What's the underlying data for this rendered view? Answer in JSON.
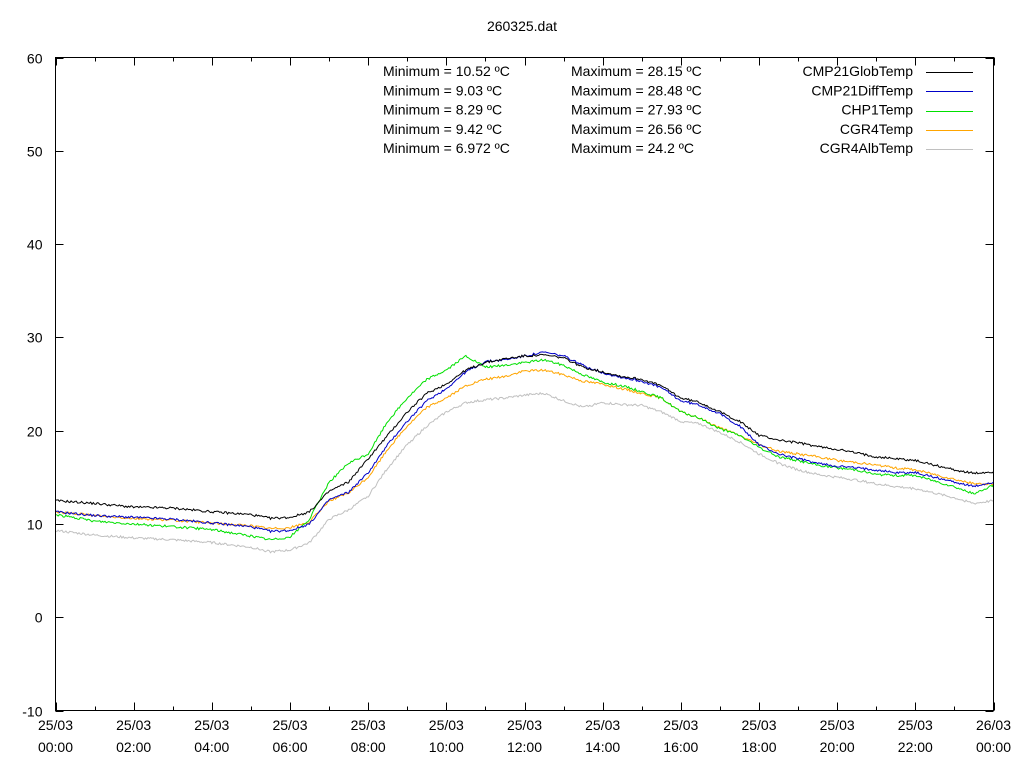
{
  "chart_data": {
    "type": "line",
    "title": "260325.dat",
    "xlabel": "",
    "ylabel": "",
    "ylim": [
      -10,
      60
    ],
    "xlim_hours": [
      0,
      24
    ],
    "y_ticks": [
      -10,
      0,
      10,
      20,
      30,
      40,
      50,
      60
    ],
    "x_ticks": [
      {
        "hour": 0,
        "date": "25/03",
        "time": "00:00"
      },
      {
        "hour": 2,
        "date": "25/03",
        "time": "02:00"
      },
      {
        "hour": 4,
        "date": "25/03",
        "time": "04:00"
      },
      {
        "hour": 6,
        "date": "25/03",
        "time": "06:00"
      },
      {
        "hour": 8,
        "date": "25/03",
        "time": "08:00"
      },
      {
        "hour": 10,
        "date": "25/03",
        "time": "10:00"
      },
      {
        "hour": 12,
        "date": "25/03",
        "time": "12:00"
      },
      {
        "hour": 14,
        "date": "25/03",
        "time": "14:00"
      },
      {
        "hour": 16,
        "date": "25/03",
        "time": "16:00"
      },
      {
        "hour": 18,
        "date": "25/03",
        "time": "18:00"
      },
      {
        "hour": 20,
        "date": "25/03",
        "time": "20:00"
      },
      {
        "hour": 22,
        "date": "25/03",
        "time": "22:00"
      },
      {
        "hour": 24,
        "date": "26/03",
        "time": "00:00"
      }
    ],
    "grid": false,
    "legend_position": "top-right",
    "stats": [
      {
        "min": "Minimum = 10.52 ºC",
        "max": "Maximum = 28.15 ºC"
      },
      {
        "min": "Minimum = 9.03 ºC",
        "max": "Maximum = 28.48 ºC"
      },
      {
        "min": "Minimum = 8.29 ºC",
        "max": "Maximum = 27.93 ºC"
      },
      {
        "min": "Minimum = 9.42 ºC",
        "max": "Maximum = 26.56 ºC"
      },
      {
        "min": "Minimum = 6.972 ºC",
        "max": "Maximum = 24.2 ºC"
      }
    ],
    "x_hours": [
      0,
      1,
      2,
      3,
      4,
      5,
      5.5,
      6,
      6.5,
      7,
      7.5,
      8,
      8.5,
      9,
      9.5,
      10,
      10.5,
      11,
      11.5,
      12,
      12.5,
      13,
      13.5,
      14,
      14.5,
      15,
      15.5,
      16,
      16.5,
      17,
      17.5,
      18,
      18.5,
      19,
      19.5,
      20,
      20.5,
      21,
      21.5,
      22,
      22.5,
      23,
      23.5,
      24
    ],
    "series": [
      {
        "name": "CMP21GlobTemp",
        "color": "#000000",
        "values": [
          12.5,
          12.2,
          11.8,
          11.7,
          11.3,
          11.0,
          10.6,
          10.7,
          11.3,
          13.5,
          14.5,
          17,
          19.5,
          22,
          24,
          25,
          26.5,
          27.3,
          27.7,
          28,
          28.1,
          27.8,
          26.8,
          26.3,
          25.8,
          25.5,
          24.8,
          23.5,
          23,
          22,
          21,
          19.5,
          19,
          18.7,
          18.3,
          18,
          17.6,
          17.2,
          17,
          16.8,
          16.3,
          15.8,
          15.4,
          15.6
        ]
      },
      {
        "name": "CMP21DiffTemp",
        "color": "#0000c8",
        "values": [
          11.3,
          10.9,
          10.7,
          10.5,
          10.1,
          9.7,
          9.2,
          9.3,
          10,
          12.6,
          13.4,
          15.5,
          18.5,
          21,
          23.2,
          24.5,
          26.3,
          27.4,
          27.6,
          28,
          28.4,
          28,
          27,
          26.2,
          25.7,
          25.3,
          24.6,
          23.2,
          22.7,
          21.8,
          20.5,
          18.5,
          17.5,
          17,
          16.5,
          16.2,
          16,
          15.8,
          15.5,
          15.5,
          15,
          14.5,
          14,
          14.5
        ]
      },
      {
        "name": "CHP1Temp",
        "color": "#00e000",
        "values": [
          11,
          10.3,
          10,
          9.7,
          9.4,
          8.7,
          8.3,
          8.6,
          10.5,
          14.5,
          16.5,
          17.5,
          21,
          23.5,
          25.5,
          26.5,
          28,
          26.8,
          27,
          27.3,
          27.6,
          27,
          26,
          25.2,
          24.8,
          24.2,
          23.5,
          22,
          21.3,
          20.2,
          19.5,
          18.2,
          17.2,
          16.8,
          16.3,
          16,
          15.8,
          15.3,
          15.2,
          15.2,
          14.6,
          14,
          13.2,
          14.2
        ]
      },
      {
        "name": "CGR4Temp",
        "color": "#ffa500",
        "values": [
          11.3,
          10.9,
          10.6,
          10.4,
          10.1,
          9.8,
          9.5,
          9.6,
          10.2,
          12.5,
          13.3,
          15,
          18,
          20.5,
          22.5,
          23.5,
          24.8,
          25.5,
          25.8,
          26.4,
          26.5,
          26,
          25.3,
          25,
          24.5,
          24,
          23.5,
          22,
          21.3,
          20.3,
          19.5,
          18.5,
          17.8,
          17.5,
          17.2,
          16.8,
          16.6,
          16.3,
          16,
          15.8,
          15.3,
          14.8,
          14.3,
          14.3
        ]
      },
      {
        "name": "CGR4AlbTemp",
        "color": "#c0c0c0",
        "values": [
          9.3,
          8.8,
          8.5,
          8.3,
          8,
          7.5,
          7,
          7.2,
          8,
          10.5,
          11.5,
          13,
          16,
          18.5,
          20.5,
          22,
          23,
          23.3,
          23.5,
          23.8,
          24,
          23.2,
          22.5,
          23,
          22.8,
          22.7,
          22,
          21,
          20.7,
          19.8,
          18.8,
          17.5,
          16.5,
          15.8,
          15.3,
          15,
          14.7,
          14.3,
          14,
          13.8,
          13.3,
          12.8,
          12.2,
          12.5
        ]
      }
    ]
  }
}
